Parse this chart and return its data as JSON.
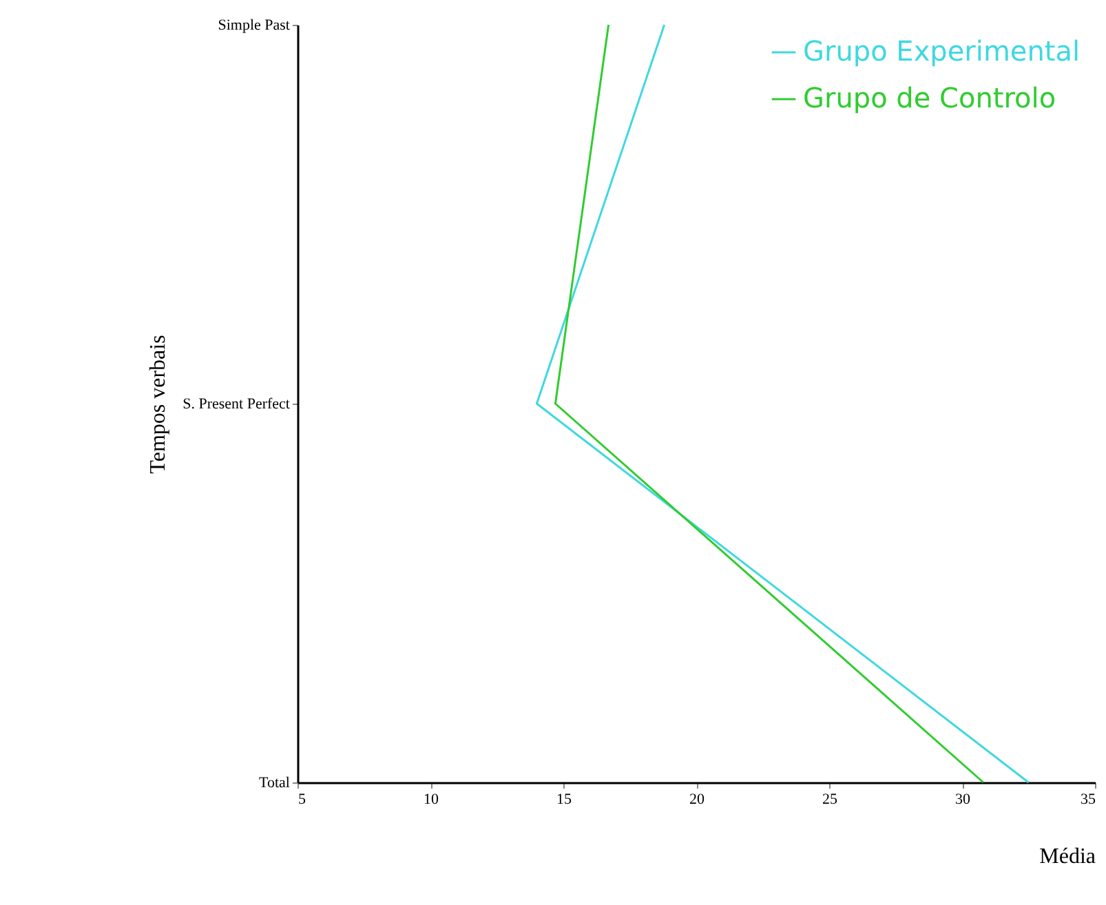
{
  "chart_data": {
    "type": "line",
    "orientation": "horizontal",
    "xlabel": "Média",
    "ylabel": "Tempos verbais",
    "categories": [
      "Simple Past",
      "S. Present Perfect",
      "Total"
    ],
    "series": [
      {
        "name": "Grupo Experimental",
        "color": "#40d8e0",
        "values": [
          18.8,
          14.0,
          32.5
        ]
      },
      {
        "name": "Grupo de Controlo",
        "color": "#30cc30",
        "values": [
          16.7,
          14.7,
          30.8
        ]
      }
    ],
    "xlim": [
      5,
      35
    ],
    "xticks": [
      5,
      10,
      15,
      20,
      25,
      30,
      35
    ],
    "legend": "top right",
    "marker": "none",
    "line_style": "solid"
  }
}
